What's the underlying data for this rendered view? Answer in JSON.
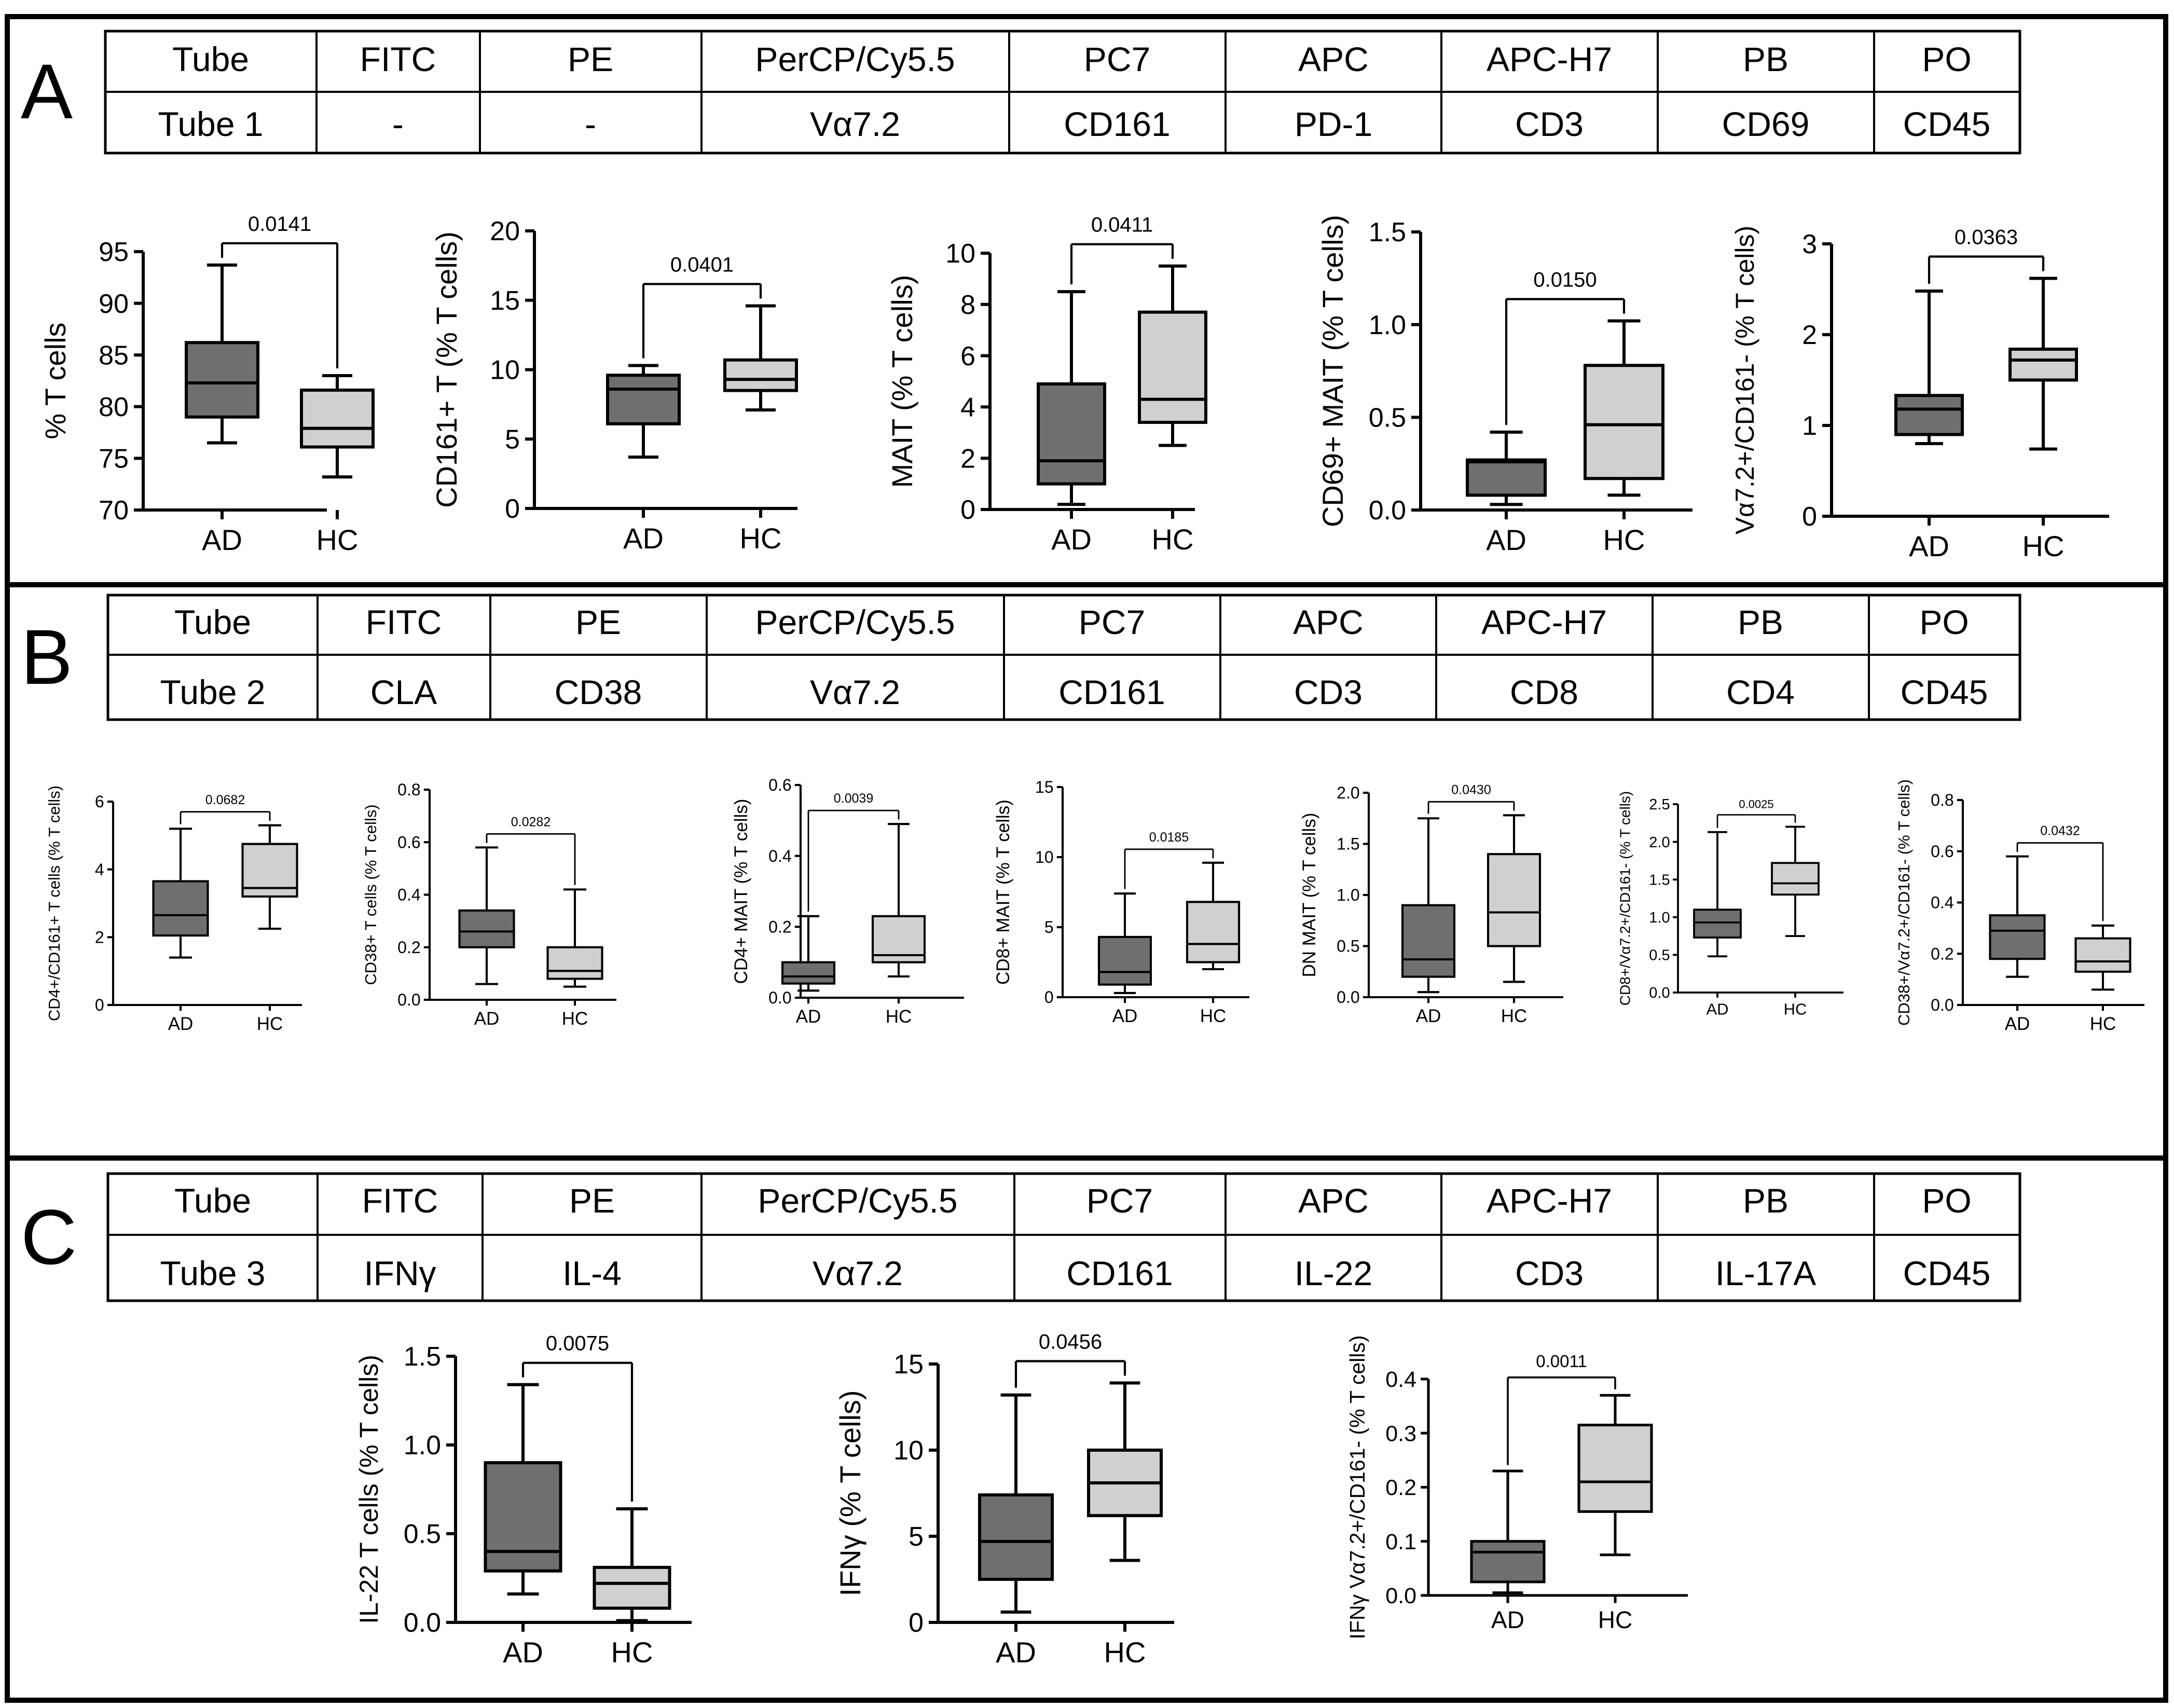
{
  "panels": [
    {
      "letter": "A",
      "table": {
        "header": [
          "Tube",
          "FITC",
          "PE",
          "PerCP/Cy5.5",
          "PC7",
          "APC",
          "APC-H7",
          "PB",
          "PO"
        ],
        "row": [
          "Tube 1",
          "-",
          "-",
          "Vα7.2",
          "CD161",
          "PD-1",
          "CD3",
          "CD69",
          "CD45"
        ]
      }
    },
    {
      "letter": "B",
      "table": {
        "header": [
          "Tube",
          "FITC",
          "PE",
          "PerCP/Cy5.5",
          "PC7",
          "APC",
          "APC-H7",
          "PB",
          "PO"
        ],
        "row": [
          "Tube 2",
          "CLA",
          "CD38",
          "Vα7.2",
          "CD161",
          "CD3",
          "CD8",
          "CD4",
          "CD45"
        ]
      }
    },
    {
      "letter": "C",
      "table": {
        "header": [
          "Tube",
          "FITC",
          "PE",
          "PerCP/Cy5.5",
          "PC7",
          "APC",
          "APC-H7",
          "PB",
          "PO"
        ],
        "row": [
          "Tube 3",
          "IFNγ",
          "IL-4",
          "Vα7.2",
          "CD161",
          "IL-22",
          "CD3",
          "IL-17A",
          "CD45"
        ]
      }
    }
  ],
  "colors": {
    "AD": "#6f6f6f",
    "HC": "#d0d0d0",
    "line": "#000000"
  },
  "chart_data": [
    {
      "type": "box",
      "panel": "A",
      "ylabel": "% T cells",
      "categories": [
        "AD",
        "HC"
      ],
      "ylim": [
        70,
        95
      ],
      "ticks": [
        70,
        75,
        80,
        85,
        90,
        95
      ],
      "tick_labels": [
        "70",
        "75",
        "80",
        "85",
        "90",
        "95"
      ],
      "p_value": "0.0141",
      "boxes": [
        {
          "group": "AD",
          "min": 76.5,
          "q1": 79,
          "median": 82.3,
          "q3": 86.2,
          "max": 93.7
        },
        {
          "group": "HC",
          "min": 73.2,
          "q1": 76.1,
          "median": 77.9,
          "q3": 81.6,
          "max": 83
        }
      ]
    },
    {
      "type": "box",
      "panel": "A",
      "ylabel": "CD161+ T (% T cells)",
      "categories": [
        "AD",
        "HC"
      ],
      "ylim": [
        0,
        20
      ],
      "ticks": [
        0,
        5,
        10,
        15,
        20
      ],
      "tick_labels": [
        "0",
        "5",
        "10",
        "15",
        "20"
      ],
      "p_value": "0.0401",
      "boxes": [
        {
          "group": "AD",
          "min": 3.7,
          "q1": 6.1,
          "median": 8.6,
          "q3": 9.6,
          "max": 10.3
        },
        {
          "group": "HC",
          "min": 7.1,
          "q1": 8.5,
          "median": 9.3,
          "q3": 10.7,
          "max": 14.6
        }
      ]
    },
    {
      "type": "box",
      "panel": "A",
      "ylabel": "MAIT (% T cells)",
      "categories": [
        "AD",
        "HC"
      ],
      "ylim": [
        0,
        10
      ],
      "ticks": [
        0,
        2,
        4,
        6,
        8,
        10
      ],
      "tick_labels": [
        "0",
        "2",
        "4",
        "6",
        "8",
        "10"
      ],
      "p_value": "0.0411",
      "boxes": [
        {
          "group": "AD",
          "min": 0.2,
          "q1": 1,
          "median": 1.9,
          "q3": 4.9,
          "max": 8.5
        },
        {
          "group": "HC",
          "min": 2.5,
          "q1": 3.4,
          "median": 4.3,
          "q3": 7.7,
          "max": 9.5
        }
      ]
    },
    {
      "type": "box",
      "panel": "A",
      "ylabel": "CD69+ MAIT (% T cells)",
      "categories": [
        "AD",
        "HC"
      ],
      "ylim": [
        0,
        1.5
      ],
      "ticks": [
        0,
        0.5,
        1,
        1.5
      ],
      "tick_labels": [
        "0.0",
        "0.5",
        "1.0",
        "1.5"
      ],
      "p_value": "0.0150",
      "boxes": [
        {
          "group": "AD",
          "min": 0.03,
          "q1": 0.08,
          "median": 0.26,
          "q3": 0.27,
          "max": 0.42
        },
        {
          "group": "HC",
          "min": 0.08,
          "q1": 0.17,
          "median": 0.46,
          "q3": 0.78,
          "max": 1.02
        }
      ]
    },
    {
      "type": "box",
      "panel": "A",
      "ylabel": "Vα7.2+/CD161- (% T cells)",
      "categories": [
        "AD",
        "HC"
      ],
      "ylim": [
        0,
        3
      ],
      "ticks": [
        0,
        1,
        2,
        3
      ],
      "tick_labels": [
        "0",
        "1",
        "2",
        "3"
      ],
      "p_value": "0.0363",
      "boxes": [
        {
          "group": "AD",
          "min": 0.8,
          "q1": 0.9,
          "median": 1.18,
          "q3": 1.33,
          "max": 2.48
        },
        {
          "group": "HC",
          "min": 0.74,
          "q1": 1.5,
          "median": 1.72,
          "q3": 1.84,
          "max": 2.62
        }
      ]
    },
    {
      "type": "box",
      "panel": "B",
      "ylabel": "CD4+/CD161+ T cells (% T cells)",
      "categories": [
        "AD",
        "HC"
      ],
      "ylim": [
        0,
        6
      ],
      "ticks": [
        0,
        2,
        4,
        6
      ],
      "tick_labels": [
        "0",
        "2",
        "4",
        "6"
      ],
      "p_value": "0.0682",
      "boxes": [
        {
          "group": "AD",
          "min": 1.4,
          "q1": 2.05,
          "median": 2.65,
          "q3": 3.65,
          "max": 5.2
        },
        {
          "group": "HC",
          "min": 2.25,
          "q1": 3.2,
          "median": 3.45,
          "q3": 4.75,
          "max": 5.3
        }
      ]
    },
    {
      "type": "box",
      "panel": "B",
      "ylabel": "CD38+ T cells (% T cells)",
      "categories": [
        "AD",
        "HC"
      ],
      "ylim": [
        0,
        0.8
      ],
      "ticks": [
        0,
        0.2,
        0.4,
        0.6,
        0.8
      ],
      "tick_labels": [
        "0.0",
        "0.2",
        "0.4",
        "0.6",
        "0.8"
      ],
      "p_value": "0.0282",
      "boxes": [
        {
          "group": "AD",
          "min": 0.06,
          "q1": 0.2,
          "median": 0.26,
          "q3": 0.34,
          "max": 0.58
        },
        {
          "group": "HC",
          "min": 0.05,
          "q1": 0.08,
          "median": 0.11,
          "q3": 0.2,
          "max": 0.42
        }
      ]
    },
    {
      "type": "box",
      "panel": "B",
      "ylabel": "CD4+ MAIT (% T cells)",
      "categories": [
        "AD",
        "HC"
      ],
      "ylim": [
        0,
        0.6
      ],
      "ticks": [
        0,
        0.2,
        0.4,
        0.6
      ],
      "tick_labels": [
        "0.0",
        "0.2",
        "0.4",
        "0.6"
      ],
      "p_value": "0.0039",
      "boxes": [
        {
          "group": "AD",
          "min": 0.02,
          "q1": 0.04,
          "median": 0.06,
          "q3": 0.1,
          "max": 0.23
        },
        {
          "group": "HC",
          "min": 0.06,
          "q1": 0.1,
          "median": 0.12,
          "q3": 0.23,
          "max": 0.49
        }
      ]
    },
    {
      "type": "box",
      "panel": "B",
      "ylabel": "CD8+ MAIT (% T cells)",
      "categories": [
        "AD",
        "HC"
      ],
      "ylim": [
        0,
        15
      ],
      "ticks": [
        0,
        5,
        10,
        15
      ],
      "tick_labels": [
        "0",
        "5",
        "10",
        "15"
      ],
      "p_value": "0.0185",
      "boxes": [
        {
          "group": "AD",
          "min": 0.3,
          "q1": 0.9,
          "median": 1.8,
          "q3": 4.3,
          "max": 7.4
        },
        {
          "group": "HC",
          "min": 2,
          "q1": 2.5,
          "median": 3.8,
          "q3": 6.8,
          "max": 9.6
        }
      ]
    },
    {
      "type": "box",
      "panel": "B",
      "ylabel": "DN MAIT (% T cells)",
      "categories": [
        "AD",
        "HC"
      ],
      "ylim": [
        0,
        2
      ],
      "ticks": [
        0,
        0.5,
        1,
        1.5,
        2
      ],
      "tick_labels": [
        "0.0",
        "0.5",
        "1.0",
        "1.5",
        "2.0"
      ],
      "p_value": "0.0430",
      "boxes": [
        {
          "group": "AD",
          "min": 0.05,
          "q1": 0.2,
          "median": 0.37,
          "q3": 0.9,
          "max": 1.75
        },
        {
          "group": "HC",
          "min": 0.15,
          "q1": 0.5,
          "median": 0.83,
          "q3": 1.4,
          "max": 1.78
        }
      ]
    },
    {
      "type": "box",
      "panel": "B",
      "ylabel": "CD8+/Vα7.2+/CD161- (% T cells)",
      "categories": [
        "AD",
        "HC"
      ],
      "ylim": [
        0,
        2.5
      ],
      "ticks": [
        0,
        0.5,
        1,
        1.5,
        2,
        2.5
      ],
      "tick_labels": [
        "0.0",
        "0.5",
        "1.0",
        "1.5",
        "2.0",
        "2.5"
      ],
      "p_value": "0.0025",
      "boxes": [
        {
          "group": "AD",
          "min": 0.48,
          "q1": 0.73,
          "median": 0.93,
          "q3": 1.1,
          "max": 2.13
        },
        {
          "group": "HC",
          "min": 0.75,
          "q1": 1.3,
          "median": 1.45,
          "q3": 1.72,
          "max": 2.2
        }
      ]
    },
    {
      "type": "box",
      "panel": "B",
      "ylabel": "CD38+/Vα7.2+/CD161- (% T cells)",
      "categories": [
        "AD",
        "HC"
      ],
      "ylim": [
        0,
        0.8
      ],
      "ticks": [
        0,
        0.2,
        0.4,
        0.6,
        0.8
      ],
      "tick_labels": [
        "0.0",
        "0.2",
        "0.4",
        "0.6",
        "0.8"
      ],
      "p_value": "0.0432",
      "boxes": [
        {
          "group": "AD",
          "min": 0.11,
          "q1": 0.18,
          "median": 0.29,
          "q3": 0.35,
          "max": 0.58
        },
        {
          "group": "HC",
          "min": 0.06,
          "q1": 0.13,
          "median": 0.17,
          "q3": 0.26,
          "max": 0.31
        }
      ]
    },
    {
      "type": "box",
      "panel": "C",
      "ylabel": "IL-22 T cells (% T cells)",
      "categories": [
        "AD",
        "HC"
      ],
      "ylim": [
        0,
        1.5
      ],
      "ticks": [
        0,
        0.5,
        1,
        1.5
      ],
      "tick_labels": [
        "0.0",
        "0.5",
        "1.0",
        "1.5"
      ],
      "p_value": "0.0075",
      "boxes": [
        {
          "group": "AD",
          "min": 0.16,
          "q1": 0.29,
          "median": 0.4,
          "q3": 0.9,
          "max": 1.34
        },
        {
          "group": "HC",
          "min": 0.01,
          "q1": 0.08,
          "median": 0.22,
          "q3": 0.31,
          "max": 0.64
        }
      ]
    },
    {
      "type": "box",
      "panel": "C",
      "ylabel": "IFNγ (% T cells)",
      "categories": [
        "AD",
        "HC"
      ],
      "ylim": [
        0,
        15
      ],
      "ticks": [
        0,
        5,
        10,
        15
      ],
      "tick_labels": [
        "0",
        "5",
        "10",
        "15"
      ],
      "p_value": "0.0456",
      "boxes": [
        {
          "group": "AD",
          "min": 0.6,
          "q1": 2.5,
          "median": 4.7,
          "q3": 7.4,
          "max": 13.2
        },
        {
          "group": "HC",
          "min": 3.6,
          "q1": 6.2,
          "median": 8.1,
          "q3": 10,
          "max": 13.9
        }
      ]
    },
    {
      "type": "box",
      "panel": "C",
      "ylabel": "IFNγ Vα7.2+/CD161- (% T cells)",
      "categories": [
        "AD",
        "HC"
      ],
      "ylim": [
        0,
        0.4
      ],
      "ticks": [
        0,
        0.1,
        0.2,
        0.3,
        0.4
      ],
      "tick_labels": [
        "0.0",
        "0.1",
        "0.2",
        "0.3",
        "0.4"
      ],
      "p_value": "0.0011",
      "boxes": [
        {
          "group": "AD",
          "min": 0.005,
          "q1": 0.025,
          "median": 0.08,
          "q3": 0.1,
          "max": 0.23
        },
        {
          "group": "HC",
          "min": 0.075,
          "q1": 0.155,
          "median": 0.21,
          "q3": 0.315,
          "max": 0.37
        }
      ]
    }
  ]
}
